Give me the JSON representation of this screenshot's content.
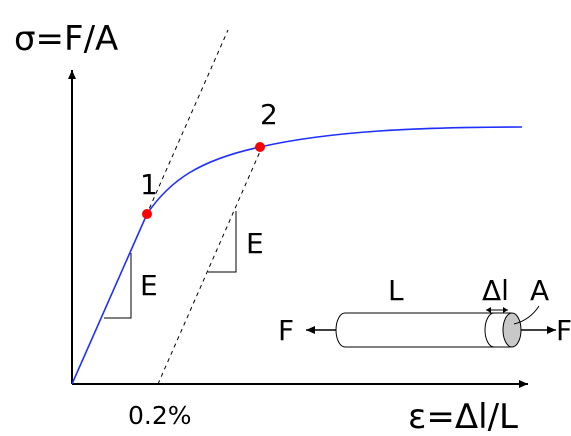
{
  "axes": {
    "y_label": "σ=F/A",
    "x_label": "ε=Δl/L",
    "offset_label": "0.2%"
  },
  "points": {
    "p1_label": "1",
    "p2_label": "2"
  },
  "modulus": {
    "label_lower": "E",
    "label_upper": "E"
  },
  "specimen": {
    "length_label": "L",
    "elongation_label": "Δl",
    "area_label": "A",
    "force_left_label": "F",
    "force_right_label": "F"
  },
  "colors": {
    "curve": "#1f2fff",
    "points": "#ff0000",
    "specimen_end": "#c8c8c8",
    "ink": "#000000"
  }
}
